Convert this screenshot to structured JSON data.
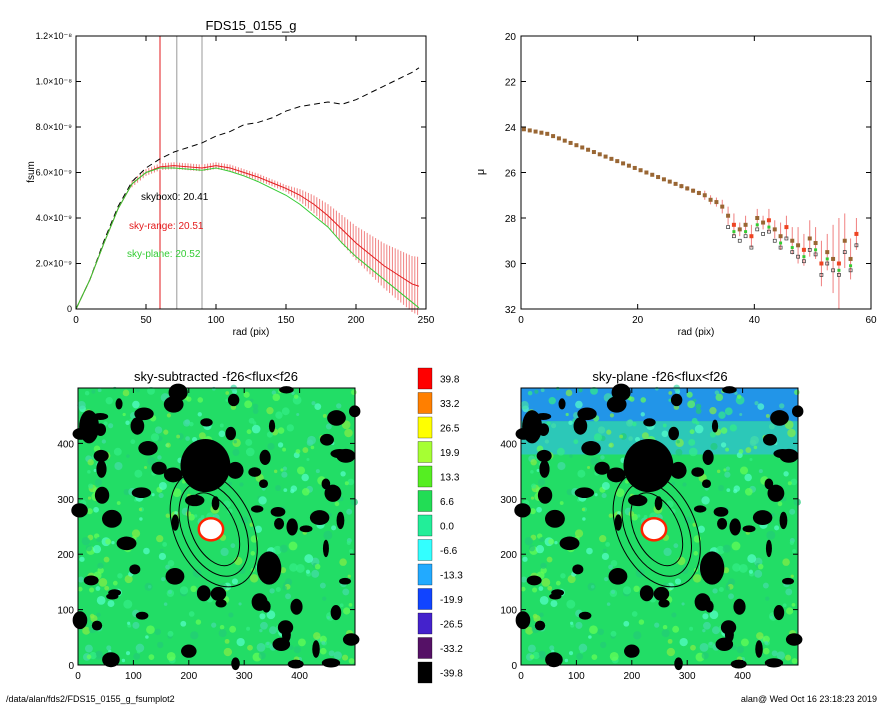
{
  "footer": {
    "path": "/data/alan/fds2/FDS15_0155_g_fsumplot2",
    "stamp": "alan@  Wed Oct 16 23:18:23 2019"
  },
  "colors": {
    "background": "#ffffff",
    "skybox": "#000000",
    "sky_range": "#e31a1c",
    "sky_plane": "#33cc33",
    "err": "#f08080",
    "vline_red": "#e31a1c",
    "vline_gray": "#999999"
  },
  "chart_data": [
    {
      "type": "line",
      "title": "FDS15_0155_g",
      "xlabel": "rad (pix)",
      "ylabel": "fsum",
      "xlim": [
        0,
        250
      ],
      "ylim": [
        0,
        1.2e-08
      ],
      "xticks": [
        "0",
        "50",
        "100",
        "150",
        "200",
        "250"
      ],
      "xtick_values": [
        0,
        50,
        100,
        150,
        200,
        250
      ],
      "yticks": [
        "0",
        "2.0×10⁻⁹",
        "4.0×10⁻⁹",
        "6.0×10⁻⁹",
        "8.0×10⁻⁹",
        "1.0×10⁻⁸",
        "1.2×10⁻⁸"
      ],
      "ytick_values": [
        0,
        2e-09,
        4e-09,
        6e-09,
        8e-09,
        1e-08,
        1.2e-08
      ],
      "vlines": [
        60,
        72,
        90
      ],
      "annotations": [
        {
          "text": "skybox0: 20.41",
          "series": "skybox"
        },
        {
          "text": "sky-range: 20.51",
          "series": "sky_range"
        },
        {
          "text": "sky-plane: 20.52",
          "series": "sky_plane"
        }
      ],
      "series": [
        {
          "key": "total",
          "style": "dashed",
          "x": [
            0,
            10,
            20,
            30,
            40,
            50,
            60,
            70,
            80,
            90,
            100,
            110,
            120,
            130,
            140,
            150,
            160,
            170,
            180,
            190,
            200,
            210,
            220,
            230,
            240,
            245
          ],
          "y": [
            0,
            1.3e-09,
            3e-09,
            4.5e-09,
            5.6e-09,
            6.2e-09,
            6.6e-09,
            6.9e-09,
            7.1e-09,
            7.3e-09,
            7.6e-09,
            7.8e-09,
            8.1e-09,
            8.2e-09,
            8.4e-09,
            8.7e-09,
            8.9e-09,
            9e-09,
            9.1e-09,
            9e-09,
            9.2e-09,
            9.5e-09,
            9.8e-09,
            1.01e-08,
            1.04e-08,
            1.06e-08
          ]
        },
        {
          "key": "sky_range",
          "style": "solid",
          "x": [
            0,
            10,
            20,
            30,
            40,
            50,
            60,
            70,
            80,
            90,
            100,
            110,
            120,
            130,
            140,
            150,
            160,
            170,
            180,
            190,
            200,
            210,
            220,
            230,
            240,
            245
          ],
          "y": [
            0,
            1.3e-09,
            2.9e-09,
            4.4e-09,
            5.5e-09,
            6e-09,
            6.25e-09,
            6.3e-09,
            6.25e-09,
            6.2e-09,
            6.3e-09,
            6.2e-09,
            6e-09,
            5.8e-09,
            5.55e-09,
            5.3e-09,
            5e-09,
            4.6e-09,
            4.1e-09,
            3.5e-09,
            2.9e-09,
            2.4e-09,
            1.9e-09,
            1.5e-09,
            1.1e-09,
            1e-09
          ]
        },
        {
          "key": "sky_plane",
          "style": "solid",
          "x": [
            0,
            10,
            20,
            30,
            40,
            50,
            60,
            70,
            80,
            90,
            100,
            110,
            120,
            130,
            140,
            150,
            160,
            170,
            180,
            190,
            200,
            210,
            220,
            230,
            240,
            245
          ],
          "y": [
            0,
            1.3e-09,
            2.9e-09,
            4.4e-09,
            5.5e-09,
            6e-09,
            6.2e-09,
            6.2e-09,
            6.15e-09,
            6.1e-09,
            6.2e-09,
            6.05e-09,
            5.85e-09,
            5.6e-09,
            5.3e-09,
            5e-09,
            4.6e-09,
            4.1e-09,
            3.6e-09,
            2.9e-09,
            2.3e-09,
            1.8e-09,
            1.3e-09,
            8e-10,
            3e-10,
            5e-11
          ]
        }
      ]
    },
    {
      "type": "scatter",
      "title": "",
      "xlabel": "rad (pix)",
      "ylabel": "μ",
      "xlim": [
        0,
        60
      ],
      "ylim": [
        32,
        20
      ],
      "xticks": [
        "0",
        "20",
        "40",
        "60"
      ],
      "xtick_values": [
        0,
        20,
        40,
        60
      ],
      "yticks": [
        "20",
        "22",
        "24",
        "26",
        "28",
        "30",
        "32"
      ],
      "ytick_values": [
        20,
        22,
        24,
        26,
        28,
        30,
        32
      ],
      "x": [
        0.5,
        1.5,
        2.5,
        3.5,
        4.5,
        5.5,
        6.5,
        7.5,
        8.5,
        9.5,
        10.5,
        11.5,
        12.5,
        13.5,
        14.5,
        15.5,
        16.5,
        17.5,
        18.5,
        19.5,
        20.5,
        21.5,
        22.5,
        23.5,
        24.5,
        25.5,
        26.5,
        27.5,
        28.5,
        29.5,
        30.5,
        31.5,
        32.5,
        33.5,
        34.5,
        35.5,
        36.5,
        37.5,
        38.5,
        39.5,
        40.5,
        41.5,
        42.5,
        43.5,
        44.5,
        45.5,
        46.5,
        47.5,
        48.5,
        49.5,
        50.5,
        51.5,
        52.5,
        53.5,
        54.5,
        55.5,
        56.5,
        57.5
      ],
      "y": [
        24.1,
        24.15,
        24.2,
        24.25,
        24.3,
        24.4,
        24.5,
        24.6,
        24.7,
        24.8,
        24.9,
        25.0,
        25.1,
        25.2,
        25.3,
        25.4,
        25.5,
        25.6,
        25.7,
        25.8,
        25.9,
        26.0,
        26.1,
        26.2,
        26.3,
        26.4,
        26.5,
        26.6,
        26.7,
        26.8,
        26.9,
        27.0,
        27.2,
        27.3,
        27.5,
        27.9,
        28.3,
        28.5,
        28.3,
        28.8,
        28.0,
        28.2,
        28.1,
        28.5,
        28.8,
        28.4,
        29.0,
        29.2,
        29.4,
        28.9,
        29.1,
        30.0,
        29.5,
        29.8,
        30.0,
        29.0,
        29.8,
        28.7
      ],
      "err": [
        0.0,
        0.0,
        0.0,
        0.0,
        0.0,
        0.0,
        0.0,
        0.0,
        0.0,
        0.0,
        0.0,
        0.0,
        0.0,
        0.0,
        0.0,
        0.0,
        0.0,
        0.0,
        0.0,
        0.0,
        0.0,
        0.0,
        0.0,
        0.0,
        0.0,
        0.0,
        0.0,
        0.1,
        0.1,
        0.1,
        0.1,
        0.2,
        0.2,
        0.2,
        0.3,
        0.4,
        0.5,
        0.3,
        0.4,
        0.5,
        0.4,
        0.3,
        0.5,
        0.4,
        0.6,
        0.5,
        0.6,
        0.8,
        0.7,
        0.8,
        0.7,
        1.0,
        0.8,
        1.5,
        2.0,
        1.2,
        0.9,
        0.7
      ]
    },
    {
      "type": "heatmap",
      "title": "sky-subtracted -f26<flux<f26",
      "xlim": [
        0,
        500
      ],
      "ylim": [
        0,
        500
      ],
      "xticks": [
        "0",
        "100",
        "200",
        "300",
        "400"
      ],
      "xtick_values": [
        0,
        100,
        200,
        300,
        400
      ],
      "yticks": [
        "0",
        "100",
        "200",
        "300",
        "400"
      ],
      "ytick_values": [
        0,
        100,
        200,
        300,
        400
      ]
    },
    {
      "type": "heatmap",
      "title": "sky-plane -f26<flux<f26",
      "xlim": [
        0,
        500
      ],
      "ylim": [
        0,
        500
      ],
      "xticks": [
        "0",
        "100",
        "200",
        "300",
        "400"
      ],
      "xtick_values": [
        0,
        100,
        200,
        300,
        400
      ],
      "yticks": [
        "0",
        "100",
        "200",
        "300",
        "400"
      ],
      "ytick_values": [
        0,
        100,
        200,
        300,
        400
      ]
    }
  ],
  "colorbar": {
    "labels": [
      "39.8",
      "33.2",
      "26.5",
      "19.9",
      "13.3",
      "6.6",
      "0.0",
      "-6.6",
      "-13.3",
      "-19.9",
      "-26.5",
      "-33.2",
      "-39.8"
    ],
    "colors": [
      "#ff0000",
      "#ff7f00",
      "#ffff00",
      "#a6ff33",
      "#55ee22",
      "#22dd55",
      "#22ee99",
      "#33ffff",
      "#22aaff",
      "#1144ff",
      "#4422cc",
      "#551166",
      "#000000"
    ]
  },
  "image_palette": {
    "bg": "#22dd66",
    "mottle": [
      "#33ee88",
      "#88ee44",
      "#44ddaa",
      "#55ffcc",
      "#22cc77",
      "#66ff55"
    ],
    "sky_plane_top": "#2288ff",
    "mask": "#000000",
    "core_fill": "#ffffff",
    "core_edge": "#ff2200"
  }
}
